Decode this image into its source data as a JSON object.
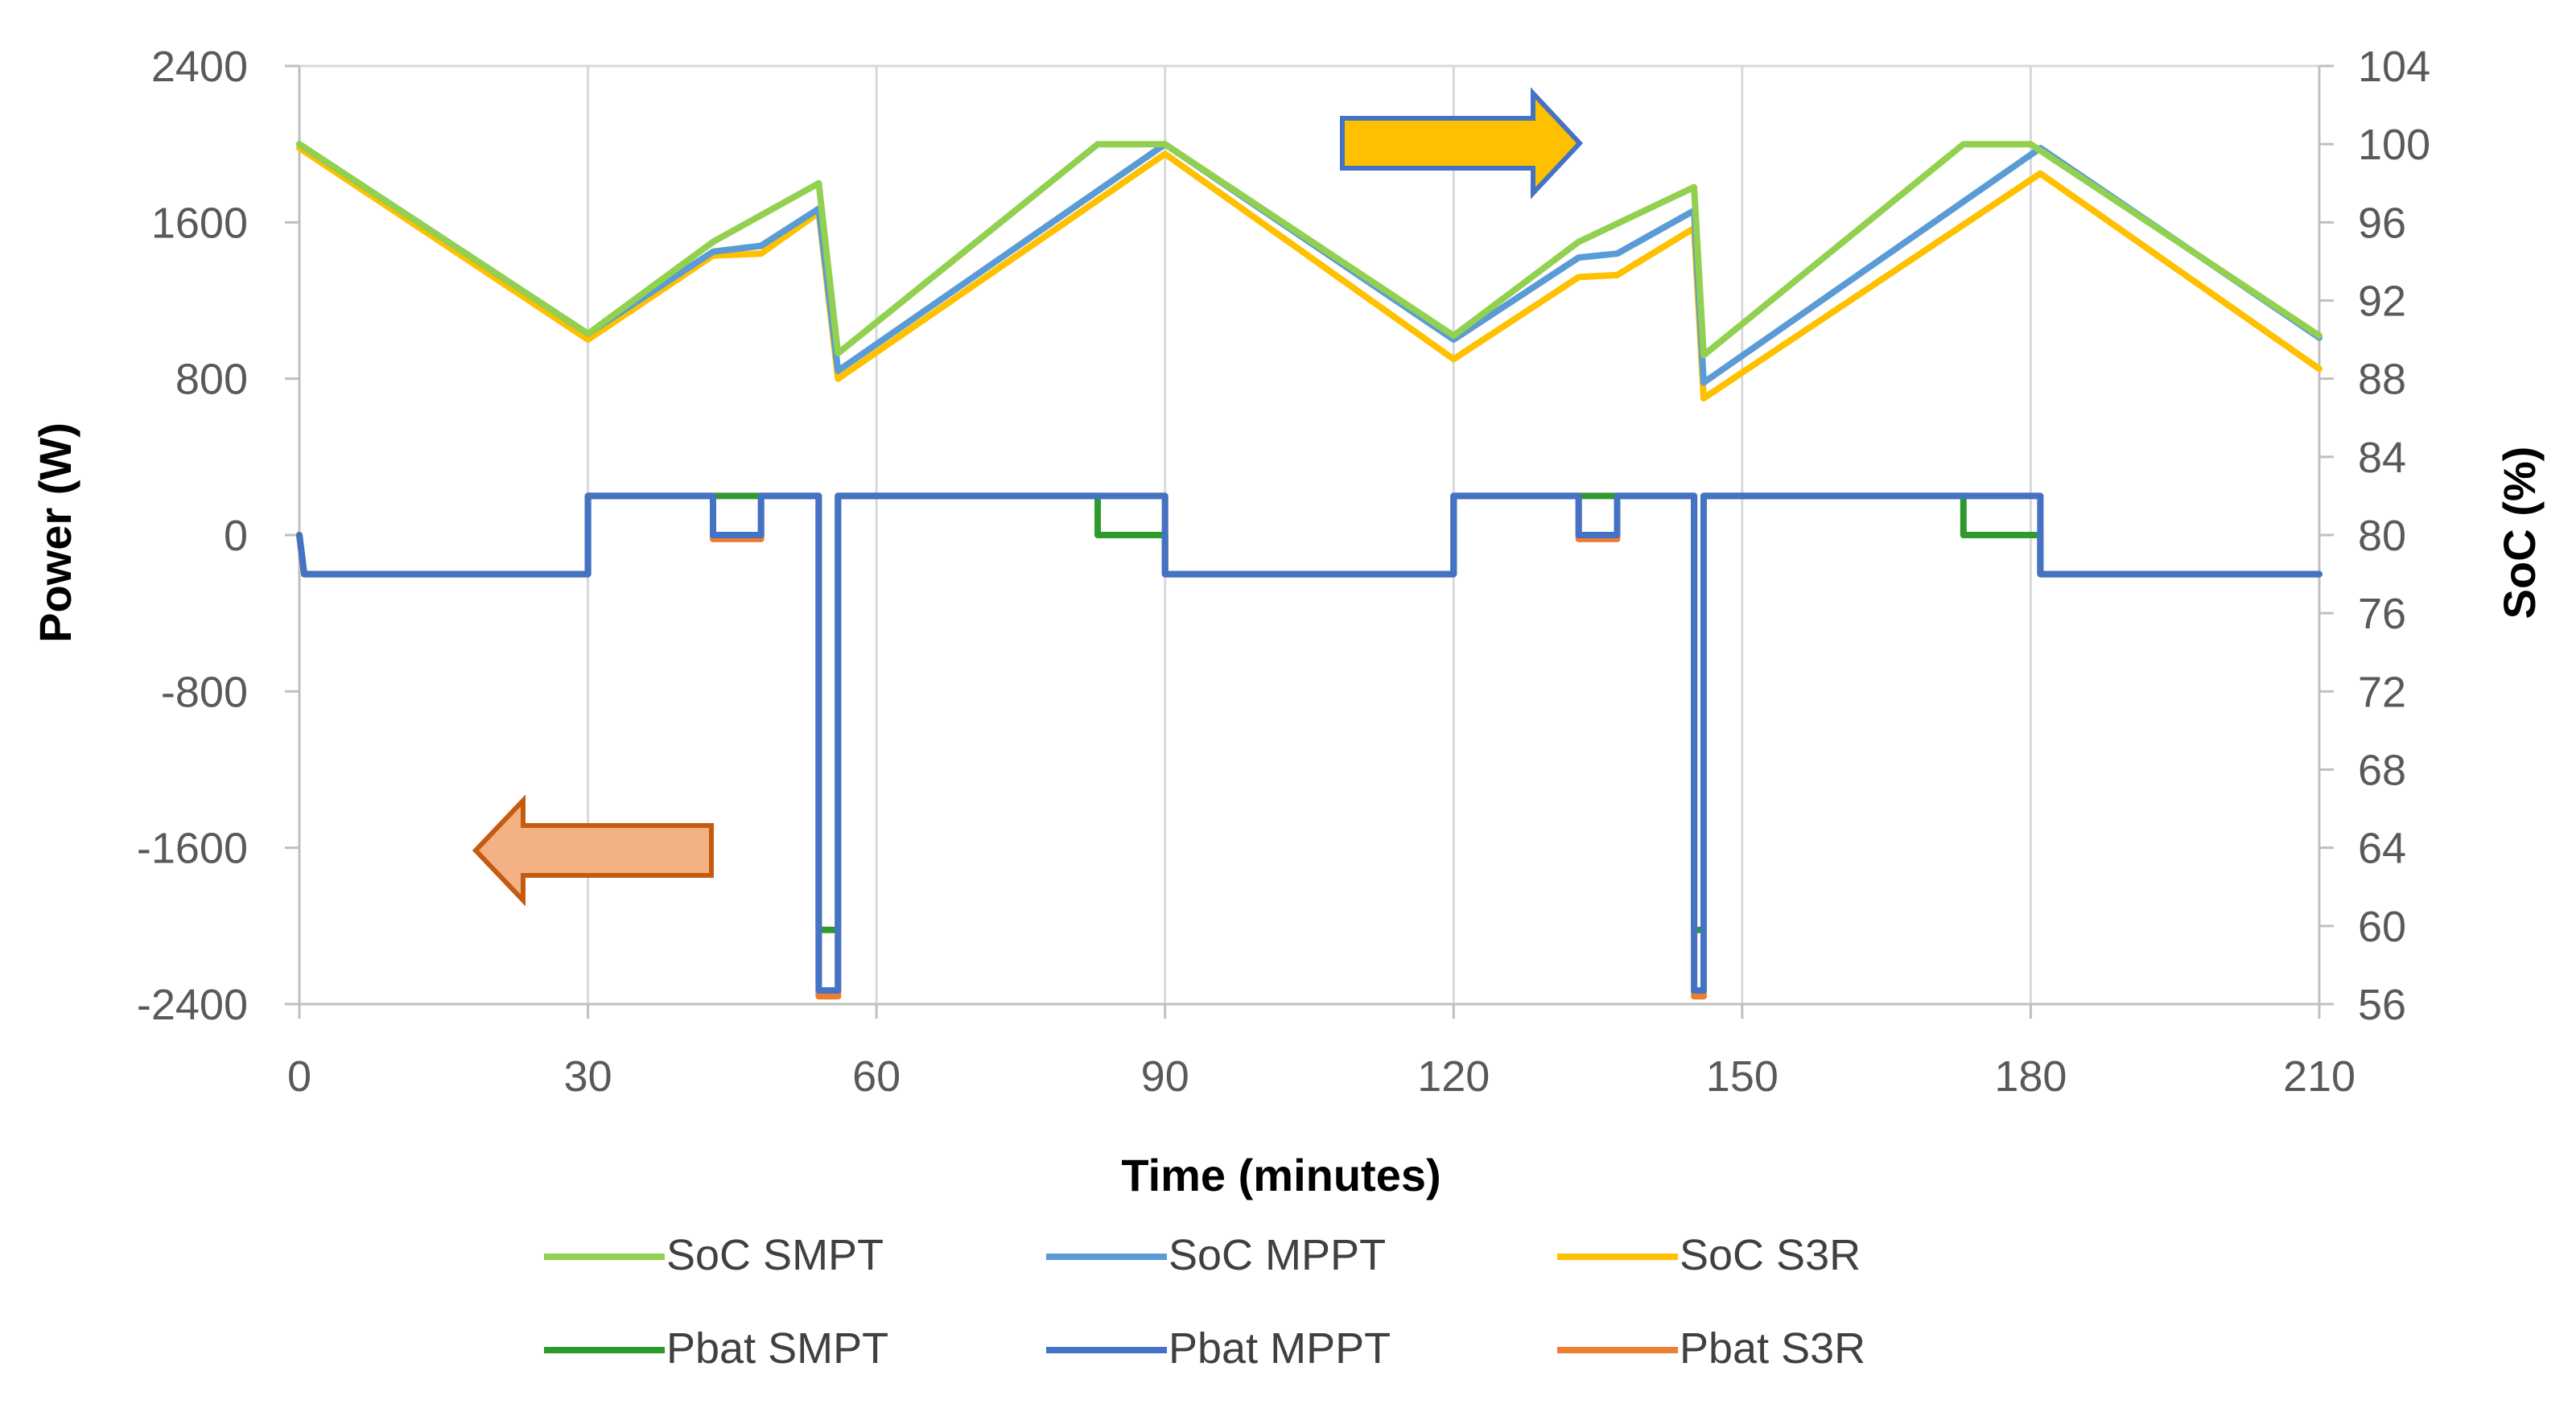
{
  "chart_data": {
    "type": "line",
    "title": "",
    "xlabel": "Time (minutes)",
    "ylabel_left": "Power (W)",
    "ylabel_right": "SoC (%)",
    "xlim": [
      0,
      210
    ],
    "ylim_left": [
      -2400,
      2400
    ],
    "ylim_right": [
      56,
      104
    ],
    "x_ticks": [
      0,
      30,
      60,
      90,
      120,
      150,
      180,
      210
    ],
    "y_left_ticks": [
      2400,
      1600,
      800,
      0,
      -800,
      -1600,
      -2400
    ],
    "y_right_ticks": [
      104,
      100,
      96,
      92,
      88,
      84,
      80,
      76,
      72,
      68,
      64,
      60,
      56
    ],
    "grid": "vertical",
    "legend_position": "bottom",
    "annotations": [
      {
        "type": "arrow",
        "direction": "right",
        "meaning": "SoC series read on right axis",
        "color": "#FFC000"
      },
      {
        "type": "arrow",
        "direction": "left",
        "meaning": "Pbat series read on left axis",
        "color": "#F4B183"
      }
    ],
    "series": [
      {
        "name": "SoC SMPT",
        "axis": "right",
        "color": "#92D050",
        "x": [
          0,
          30,
          43,
          54,
          56,
          83,
          90,
          120,
          133,
          145,
          146,
          173,
          180,
          210
        ],
        "y": [
          100,
          90.3,
          95,
          98,
          89.3,
          100,
          100,
          90.2,
          95,
          97.8,
          89.2,
          100,
          100,
          90.2
        ]
      },
      {
        "name": "SoC MPPT",
        "axis": "right",
        "color": "#5B9BD5",
        "x": [
          0,
          30,
          43,
          48,
          54,
          56,
          90,
          120,
          133,
          137,
          145,
          146,
          181,
          210
        ],
        "y": [
          100,
          90.3,
          94.5,
          94.8,
          96.7,
          88.4,
          100,
          90,
          94.2,
          94.4,
          96.6,
          87.8,
          99.8,
          90.1
        ]
      },
      {
        "name": "SoC S3R",
        "axis": "right",
        "color": "#FFC000",
        "x": [
          0,
          30,
          43,
          48,
          54,
          56,
          90,
          120,
          133,
          137,
          145,
          146,
          181,
          210
        ],
        "y": [
          99.8,
          90,
          94.3,
          94.4,
          96.5,
          88,
          99.5,
          89,
          93.2,
          93.3,
          95.7,
          87,
          98.5,
          88.5
        ]
      },
      {
        "name": "Pbat SMPT",
        "axis": "left",
        "color": "#2E9A2E",
        "x": [
          0,
          0.5,
          30,
          30,
          43,
          48,
          54,
          54,
          56,
          56,
          83,
          83,
          90,
          90,
          120,
          120,
          133,
          137,
          145,
          145,
          146,
          146,
          173,
          173,
          181,
          181,
          210
        ],
        "y": [
          0,
          -200,
          -200,
          200,
          200,
          200,
          200,
          -2020,
          -2020,
          200,
          200,
          0,
          0,
          -200,
          -200,
          200,
          200,
          200,
          200,
          -2020,
          -2020,
          200,
          200,
          0,
          0,
          -200,
          -200
        ]
      },
      {
        "name": "Pbat MPPT",
        "axis": "left",
        "color": "#4472C4",
        "x": [
          0,
          0.5,
          30,
          30,
          43,
          43,
          48,
          48,
          54,
          54,
          56,
          56,
          90,
          90,
          120,
          120,
          133,
          133,
          137,
          137,
          145,
          145,
          146,
          146,
          181,
          181,
          210
        ],
        "y": [
          0,
          -200,
          -200,
          200,
          200,
          0,
          0,
          200,
          200,
          -2330,
          -2330,
          200,
          200,
          -200,
          -200,
          200,
          200,
          0,
          0,
          200,
          200,
          -2330,
          -2330,
          200,
          200,
          -200,
          -200
        ]
      },
      {
        "name": "Pbat S3R",
        "axis": "left",
        "color": "#ED7D31",
        "x": [
          0,
          0.5,
          30,
          30,
          43,
          43,
          48,
          48,
          54,
          54,
          56,
          56,
          90,
          90,
          120,
          120,
          133,
          133,
          137,
          137,
          145,
          145,
          146,
          146,
          181,
          181,
          210
        ],
        "y": [
          0,
          -200,
          -200,
          200,
          200,
          -20,
          -20,
          200,
          200,
          -2360,
          -2360,
          200,
          200,
          -200,
          -200,
          200,
          200,
          -20,
          -20,
          200,
          200,
          -2360,
          -2360,
          200,
          200,
          -200,
          -200
        ]
      }
    ],
    "legend_order": [
      "SoC SMPT",
      "SoC MPPT",
      "SoC S3R",
      "Pbat SMPT",
      "Pbat MPPT",
      "Pbat S3R"
    ]
  }
}
